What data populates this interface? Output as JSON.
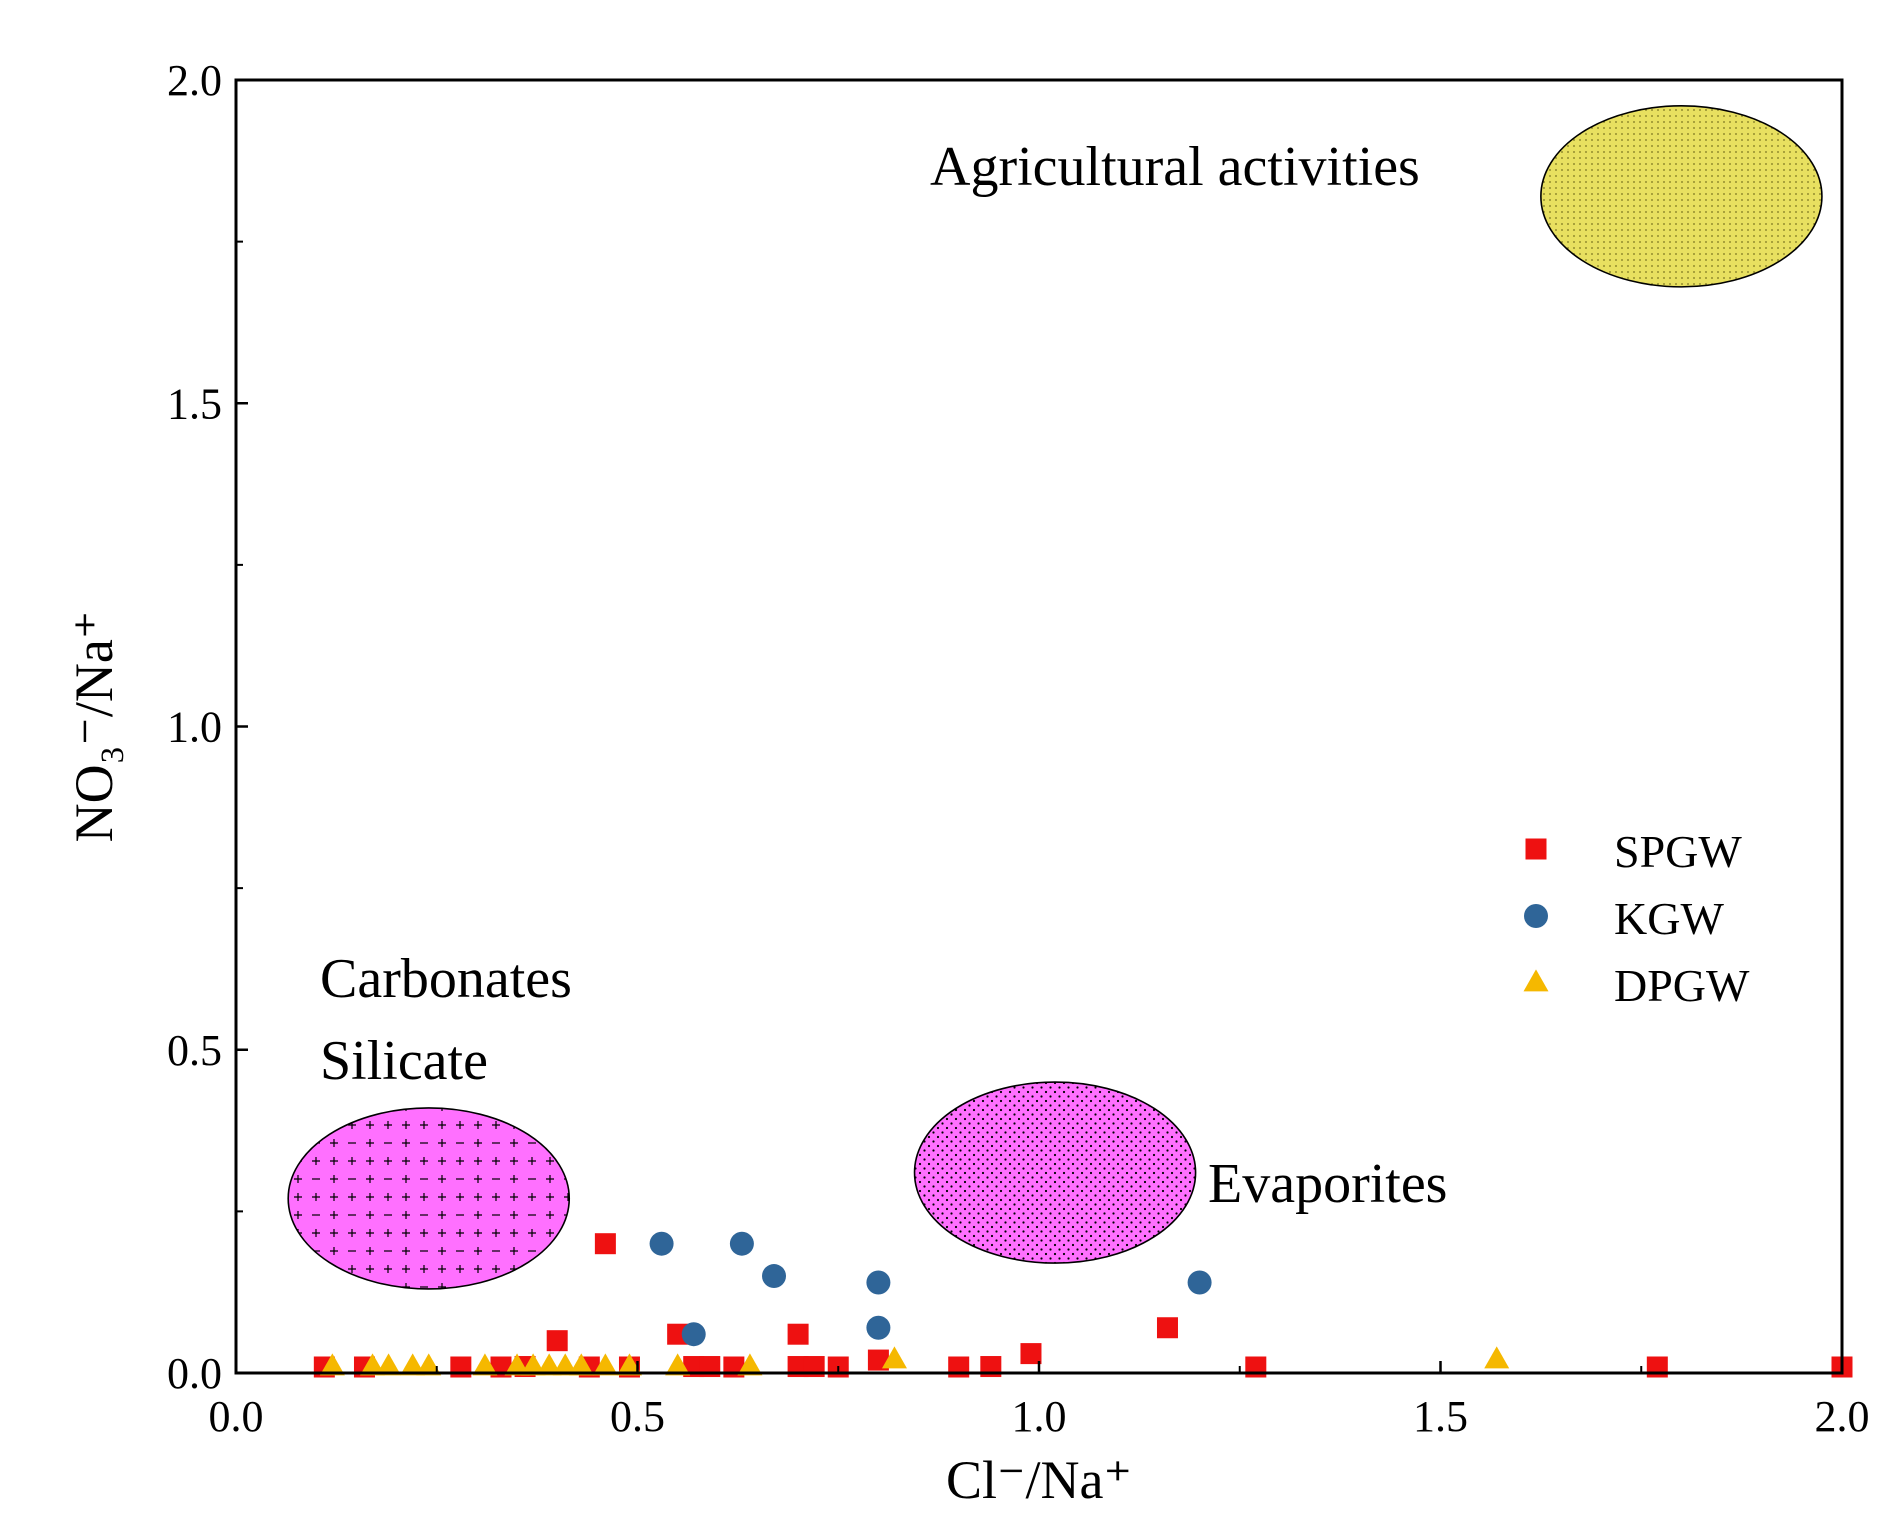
{
  "chart_data": {
    "type": "scatter",
    "title": "",
    "xlabel": "Cl⁻/Na⁺",
    "ylabel": "NO₃⁻/Na⁺",
    "xlim": [
      0.0,
      2.0
    ],
    "ylim": [
      0.0,
      2.0
    ],
    "x_ticks": [
      "0.0",
      "0.5",
      "1.0",
      "1.5",
      "2.0"
    ],
    "y_ticks": [
      "0.0",
      "0.5",
      "1.0",
      "1.5",
      "2.0"
    ],
    "x_tick_values": [
      0,
      0.5,
      1.0,
      1.5,
      2.0
    ],
    "y_tick_values": [
      0,
      0.5,
      1.0,
      1.5,
      2.0
    ],
    "grid": false,
    "legend_position": "right",
    "series": [
      {
        "name": "SPGW",
        "marker": "square",
        "color": "#ee1111",
        "points": [
          [
            0.11,
            0.0
          ],
          [
            0.16,
            0.0
          ],
          [
            0.28,
            0.0
          ],
          [
            0.33,
            0.0
          ],
          [
            0.36,
            0.01
          ],
          [
            0.4,
            0.05
          ],
          [
            0.44,
            0.0
          ],
          [
            0.46,
            0.2
          ],
          [
            0.49,
            0.0
          ],
          [
            0.55,
            0.06
          ],
          [
            0.57,
            0.01
          ],
          [
            0.59,
            0.01
          ],
          [
            0.62,
            0.0
          ],
          [
            0.7,
            0.06
          ],
          [
            0.7,
            0.01
          ],
          [
            0.72,
            0.01
          ],
          [
            0.75,
            0.0
          ],
          [
            0.8,
            0.02
          ],
          [
            0.9,
            0.0
          ],
          [
            0.94,
            0.01
          ],
          [
            0.99,
            0.03
          ],
          [
            1.16,
            0.07
          ],
          [
            1.27,
            0.0
          ],
          [
            1.77,
            0.0
          ],
          [
            2.0,
            0.0
          ]
        ]
      },
      {
        "name": "KGW",
        "marker": "circle",
        "color": "#2f6598",
        "points": [
          [
            0.53,
            0.2
          ],
          [
            0.57,
            0.06
          ],
          [
            0.63,
            0.2
          ],
          [
            0.67,
            0.15
          ],
          [
            0.8,
            0.14
          ],
          [
            0.8,
            0.07
          ],
          [
            1.2,
            0.14
          ]
        ]
      },
      {
        "name": "DPGW",
        "marker": "triangle",
        "color": "#f5b800",
        "points": [
          [
            0.12,
            0.0
          ],
          [
            0.17,
            0.0
          ],
          [
            0.19,
            0.0
          ],
          [
            0.22,
            0.0
          ],
          [
            0.24,
            0.0
          ],
          [
            0.31,
            0.0
          ],
          [
            0.35,
            0.0
          ],
          [
            0.37,
            0.0
          ],
          [
            0.39,
            0.0
          ],
          [
            0.41,
            0.0
          ],
          [
            0.43,
            0.0
          ],
          [
            0.46,
            0.0
          ],
          [
            0.49,
            0.0
          ],
          [
            0.55,
            0.0
          ],
          [
            0.64,
            0.0
          ],
          [
            0.82,
            0.02
          ],
          [
            1.57,
            0.02
          ]
        ]
      }
    ],
    "regions": [
      {
        "name": "Agricultural activities",
        "label": "Agricultural activities",
        "center": [
          1.8,
          1.82
        ],
        "radii": [
          0.175,
          0.14
        ],
        "fill": "#e8e060",
        "pattern": "fine-dots"
      },
      {
        "name": "Carbonates Silicate",
        "label_lines": [
          "Carbonates",
          "Silicate"
        ],
        "center": [
          0.24,
          0.27
        ],
        "radii": [
          0.175,
          0.14
        ],
        "fill": "#ff70ff",
        "pattern": "plus-minus"
      },
      {
        "name": "Evaporites",
        "label": "Evaporites",
        "center": [
          1.02,
          0.31
        ],
        "radii": [
          0.175,
          0.14
        ],
        "fill": "#ff70ff",
        "pattern": "dots"
      }
    ]
  }
}
